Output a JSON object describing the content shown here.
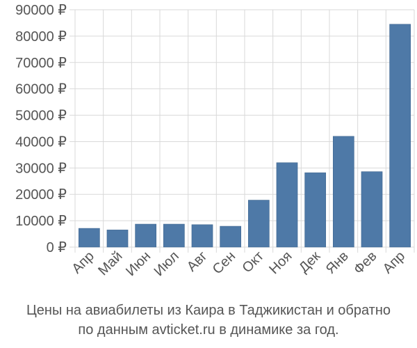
{
  "chart_data": {
    "type": "bar",
    "categories": [
      "Апр",
      "Май",
      "Июн",
      "Июл",
      "Авг",
      "Сен",
      "Окт",
      "Ноя",
      "Дек",
      "Янв",
      "Фев",
      "Апр"
    ],
    "values": [
      7100,
      6500,
      8700,
      8700,
      8500,
      7900,
      17800,
      32000,
      28200,
      42000,
      28600,
      84500
    ],
    "ylim": [
      0,
      90000
    ],
    "yticks": [
      0,
      10000,
      20000,
      30000,
      40000,
      50000,
      60000,
      70000,
      80000,
      90000
    ],
    "ytick_labels": [
      "0 ₽",
      "10000 ₽",
      "20000 ₽",
      "30000 ₽",
      "40000 ₽",
      "50000 ₽",
      "60000 ₽",
      "70000 ₽",
      "80000 ₽",
      "90000 ₽"
    ],
    "grid": "both",
    "bar_color": "#4e79a7"
  },
  "caption": {
    "line1": "Цены на авиабилеты из Каира в Таджикистан и обратно",
    "line2": "по данным avticket.ru в динамике за год."
  }
}
